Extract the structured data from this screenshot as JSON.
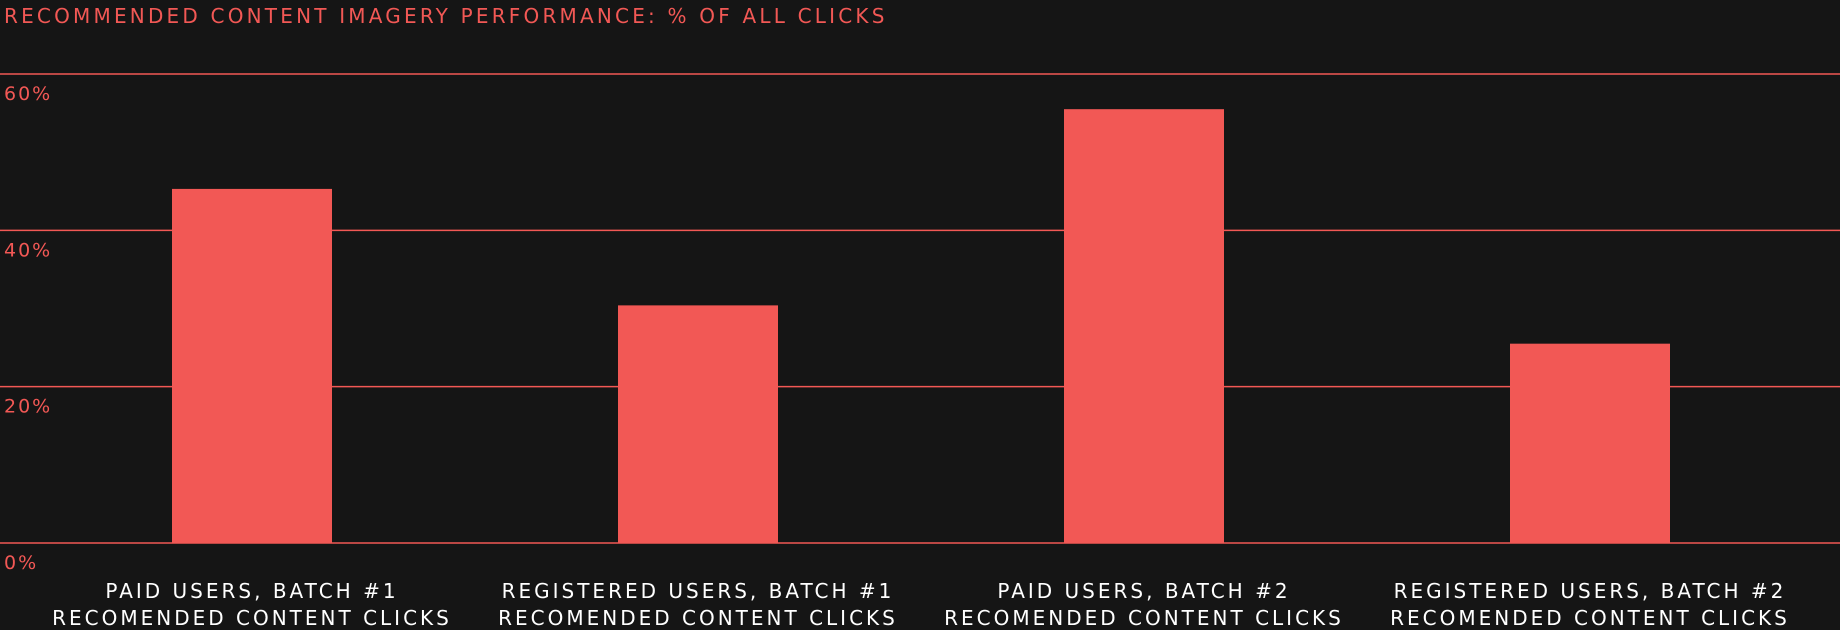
{
  "chart_data": {
    "type": "bar",
    "title": "RECOMMENDED CONTENT IMAGERY PERFORMANCE: % OF ALL CLICKS",
    "xlabel": "",
    "ylabel": "",
    "ylim": [
      0,
      60
    ],
    "yticks": [
      {
        "value": 0,
        "label": "0%"
      },
      {
        "value": 20,
        "label": "20%"
      },
      {
        "value": 40,
        "label": "40%"
      },
      {
        "value": 60,
        "label": "60%"
      }
    ],
    "categories": [
      [
        "PAID USERS, BATCH #1",
        "RECOMENDED CONTENT CLICKS"
      ],
      [
        "REGISTERED USERS, BATCH #1",
        "RECOMENDED CONTENT CLICKS"
      ],
      [
        "PAID USERS, BATCH #2",
        "RECOMENDED CONTENT CLICKS"
      ],
      [
        "REGISTERED USERS, BATCH #2",
        "RECOMENDED CONTENT CLICKS"
      ]
    ],
    "values": [
      45.3,
      30.4,
      55.5,
      25.5
    ],
    "grid": true,
    "legend": "none",
    "colors": {
      "bar": "#f25855",
      "grid": "#f25855",
      "tick_label": "#f25855",
      "category_label": "#ffffff",
      "background": "#151515"
    }
  }
}
